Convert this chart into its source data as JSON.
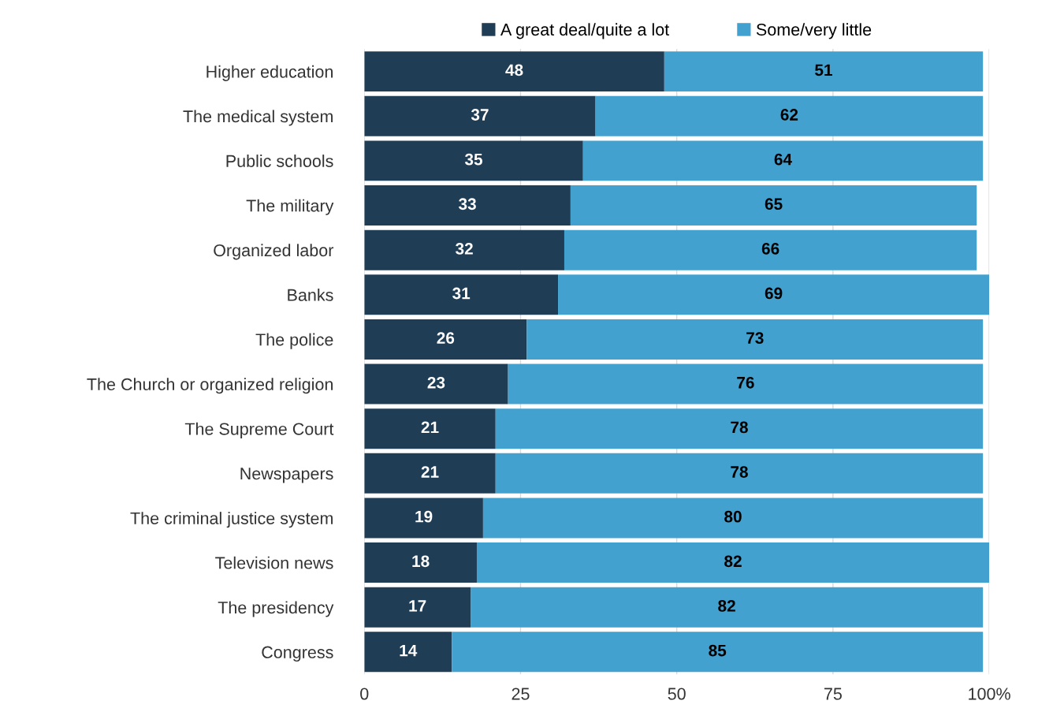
{
  "chart_data": {
    "type": "bar",
    "orientation": "horizontal",
    "stacked": true,
    "categories": [
      "Higher education",
      "The medical system",
      "Public schools",
      "The military",
      "Organized labor",
      "Banks",
      "The police",
      "The Church or organized religion",
      "The Supreme Court",
      "Newspapers",
      "The criminal justice system",
      "Television news",
      "The presidency",
      "Congress"
    ],
    "series": [
      {
        "name": "A great deal/quite a lot",
        "color": "#1f3d55",
        "values": [
          48,
          37,
          35,
          33,
          32,
          31,
          26,
          23,
          21,
          21,
          19,
          18,
          17,
          14
        ]
      },
      {
        "name": "Some/very little",
        "color": "#42a1cf",
        "values": [
          51,
          62,
          64,
          65,
          66,
          69,
          73,
          76,
          78,
          78,
          80,
          82,
          82,
          85
        ]
      }
    ],
    "xlim": [
      0,
      100
    ],
    "xticks": [
      0,
      25,
      50,
      75,
      {
        "value": 100,
        "label": "100%"
      }
    ],
    "grid": "x",
    "legend": "top",
    "data_labels": true
  }
}
